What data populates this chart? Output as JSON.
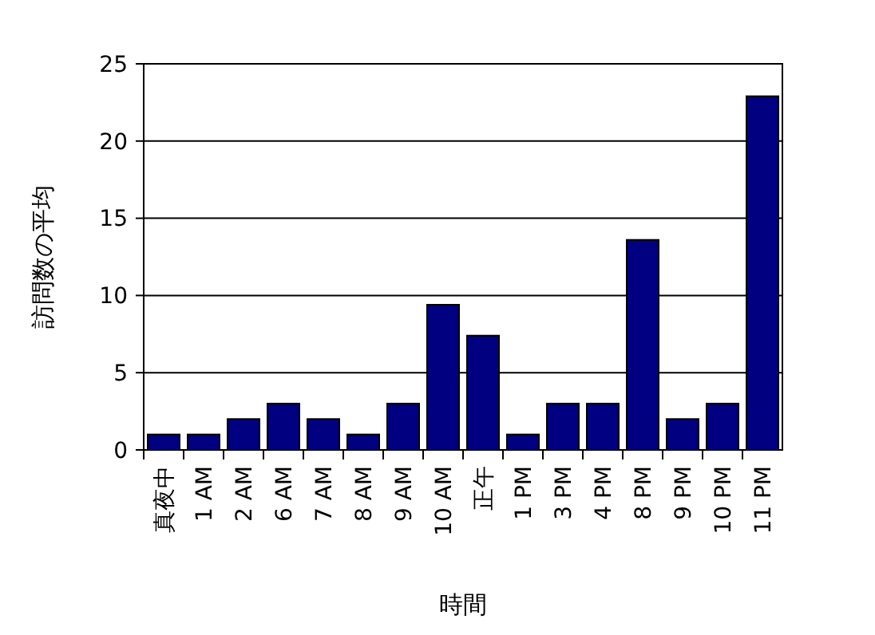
{
  "chart_data": {
    "type": "bar",
    "xlabel": "時間",
    "ylabel": "訪問数の平均",
    "categories": [
      "真夜中",
      "1 AM",
      "2 AM",
      "6 AM",
      "7 AM",
      "8 AM",
      "9 AM",
      "10 AM",
      "正午",
      "1 PM",
      "3 PM",
      "4 PM",
      "8 PM",
      "9 PM",
      "10 PM",
      "11 PM"
    ],
    "values": [
      1,
      1,
      2,
      3,
      2,
      1,
      3,
      9.4,
      7.4,
      1,
      3,
      3,
      13.6,
      2,
      3,
      22.9
    ],
    "color": "#000080",
    "ylim": [
      0,
      25
    ],
    "yticks": [
      0,
      5,
      10,
      15,
      20,
      25
    ],
    "grid": "y"
  }
}
